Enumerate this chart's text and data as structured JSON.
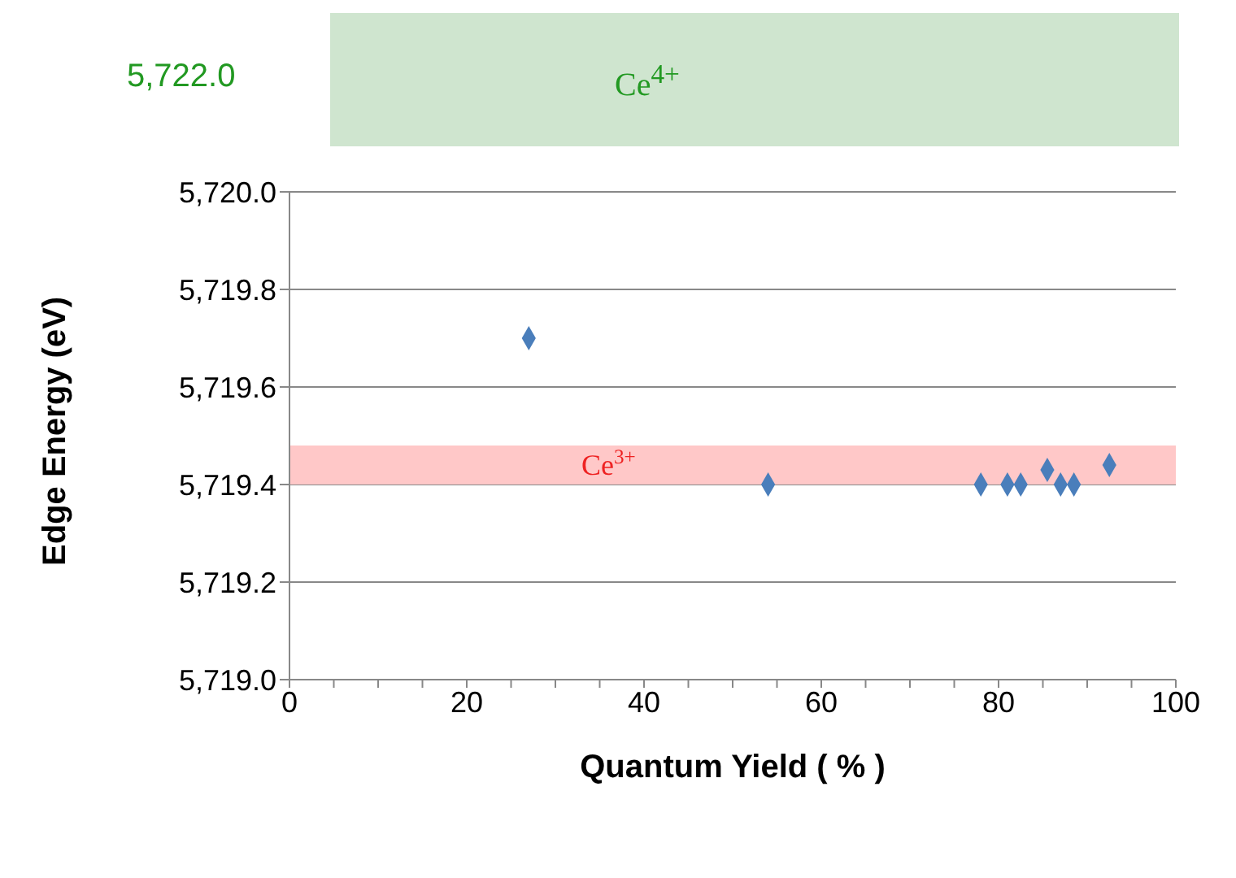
{
  "chart_data": [
    {
      "type": "other",
      "annotations": [
        "5,722.0",
        "Ce$^{4+}$"
      ],
      "colors": [
        "#229922",
        "#cfe5cf"
      ]
    },
    {
      "type": "scatter",
      "xlabel": "Quantum Yield ( % )",
      "ylabel": "Edge Energy (eV)",
      "x": [
        27,
        54,
        78,
        81,
        82.5,
        85.5,
        87,
        88.5,
        92.5
      ],
      "values": [
        5719.7,
        5719.4,
        5719.4,
        5719.4,
        5719.4,
        5719.43,
        5719.4,
        5719.4,
        5719.44
      ],
      "color": "#4a7ebb",
      "marker": "diamond",
      "xlim": [
        0,
        100
      ],
      "xticks": [
        0,
        {
          "value": 5,
          "label": null
        },
        {
          "value": 10,
          "label": null
        },
        {
          "value": 15,
          "label": null
        },
        20,
        {
          "value": 25,
          "label": null
        },
        {
          "value": 30,
          "label": null
        },
        {
          "value": 35,
          "label": null
        },
        40,
        {
          "value": 45,
          "label": null
        },
        {
          "value": 50,
          "label": null
        },
        {
          "value": 55,
          "label": null
        },
        60,
        {
          "value": 65,
          "label": null
        },
        {
          "value": 70,
          "label": null
        },
        {
          "value": 75,
          "label": null
        },
        80,
        {
          "value": 85,
          "label": null
        },
        {
          "value": 90,
          "label": null
        },
        {
          "value": 95,
          "label": null
        },
        100
      ],
      "ylim": [
        5719.0,
        5720.0
      ],
      "yticks": [
        {
          "value": 5719.0,
          "label": "5,719.0"
        },
        {
          "value": 5719.2,
          "label": "5,719.2"
        },
        {
          "value": 5719.4,
          "label": "5,719.4"
        },
        {
          "value": 5719.6,
          "label": "5,719.6"
        },
        {
          "value": 5719.8,
          "label": "5,719.8"
        },
        {
          "value": 5720.0,
          "label": "5,720.0"
        }
      ],
      "grid": "y",
      "bands": [
        {
          "axis": "y",
          "from": 5719.4,
          "to": 5719.48,
          "label": "Ce$^{3+}$",
          "color": "#ffc8c8"
        }
      ]
    }
  ]
}
